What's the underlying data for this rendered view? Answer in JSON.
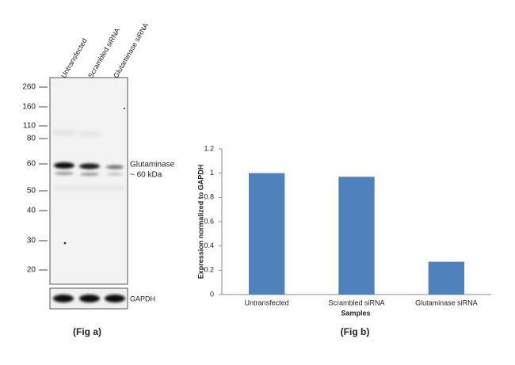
{
  "blot": {
    "lanes": [
      "Untransfected",
      "Scrambled siRNA",
      "Glutaminase siRNA"
    ],
    "markers": [
      "260",
      "160",
      "110",
      "80",
      "60",
      "50",
      "40",
      "30",
      "20"
    ],
    "band_label": [
      "Glutaminase",
      "~ 60 kDa"
    ],
    "loading_label": "GAPDH",
    "caption": "(Fig a)"
  },
  "chart_data": {
    "type": "bar",
    "categories": [
      "Untransfected",
      "Scrambled siRNA",
      "Glutaminase siRNA"
    ],
    "values": [
      1,
      0.97,
      0.27
    ],
    "color": "#4f81bd",
    "ylim": [
      0,
      1.2
    ],
    "yticks": [
      0,
      0.2,
      0.4,
      0.6,
      0.8,
      1,
      1.2
    ],
    "x_label": "Samples",
    "y_label": "Expression  normalized to GAPDH",
    "caption": "(Fig b)",
    "grid": false
  }
}
